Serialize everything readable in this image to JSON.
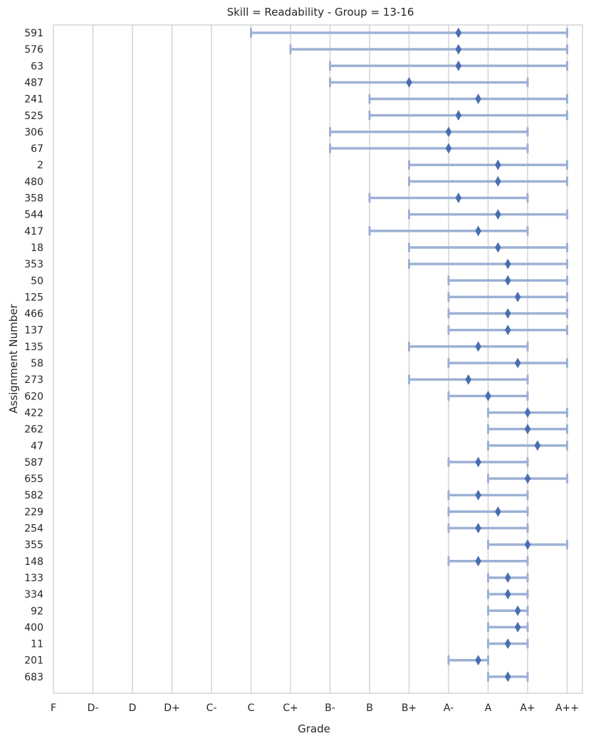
{
  "chart_data": {
    "type": "errorbar",
    "title": "Skill = Readability - Group = 13-16",
    "xlabel": "Grade",
    "ylabel": "Assignment Number",
    "x_categories": [
      "F",
      "D-",
      "D",
      "D+",
      "C-",
      "C",
      "C+",
      "B-",
      "B",
      "B+",
      "A-",
      "A",
      "A+",
      "A++"
    ],
    "grid": "vertical",
    "colors": {
      "bar": "#9db0d5",
      "marker": "#4a6fb0"
    },
    "rows": [
      {
        "label": "591",
        "low": 5,
        "high": 13,
        "mean": 10.25
      },
      {
        "label": "576",
        "low": 6,
        "high": 13,
        "mean": 10.25
      },
      {
        "label": "63",
        "low": 7,
        "high": 13,
        "mean": 10.25
      },
      {
        "label": "487",
        "low": 7,
        "high": 12,
        "mean": 9.0
      },
      {
        "label": "241",
        "low": 8,
        "high": 13,
        "mean": 10.75
      },
      {
        "label": "525",
        "low": 8,
        "high": 13,
        "mean": 10.25
      },
      {
        "label": "306",
        "low": 7,
        "high": 12,
        "mean": 10.0
      },
      {
        "label": "67",
        "low": 7,
        "high": 12,
        "mean": 10.0
      },
      {
        "label": "2",
        "low": 9,
        "high": 13,
        "mean": 11.25
      },
      {
        "label": "480",
        "low": 9,
        "high": 13,
        "mean": 11.25
      },
      {
        "label": "358",
        "low": 8,
        "high": 12,
        "mean": 10.25
      },
      {
        "label": "544",
        "low": 9,
        "high": 13,
        "mean": 11.25
      },
      {
        "label": "417",
        "low": 8,
        "high": 12,
        "mean": 10.75
      },
      {
        "label": "18",
        "low": 9,
        "high": 13,
        "mean": 11.25
      },
      {
        "label": "353",
        "low": 9,
        "high": 13,
        "mean": 11.5
      },
      {
        "label": "50",
        "low": 10,
        "high": 13,
        "mean": 11.5
      },
      {
        "label": "125",
        "low": 10,
        "high": 13,
        "mean": 11.75
      },
      {
        "label": "466",
        "low": 10,
        "high": 13,
        "mean": 11.5
      },
      {
        "label": "137",
        "low": 10,
        "high": 13,
        "mean": 11.5
      },
      {
        "label": "135",
        "low": 9,
        "high": 12,
        "mean": 10.75
      },
      {
        "label": "58",
        "low": 10,
        "high": 13,
        "mean": 11.75
      },
      {
        "label": "273",
        "low": 9,
        "high": 12,
        "mean": 10.5
      },
      {
        "label": "620",
        "low": 10,
        "high": 12,
        "mean": 11.0
      },
      {
        "label": "422",
        "low": 11,
        "high": 13,
        "mean": 12.0
      },
      {
        "label": "262",
        "low": 11,
        "high": 13,
        "mean": 12.0
      },
      {
        "label": "47",
        "low": 11,
        "high": 13,
        "mean": 12.25
      },
      {
        "label": "587",
        "low": 10,
        "high": 12,
        "mean": 10.75
      },
      {
        "label": "655",
        "low": 11,
        "high": 13,
        "mean": 12.0
      },
      {
        "label": "582",
        "low": 10,
        "high": 12,
        "mean": 10.75
      },
      {
        "label": "229",
        "low": 10,
        "high": 12,
        "mean": 11.25
      },
      {
        "label": "254",
        "low": 10,
        "high": 12,
        "mean": 10.75
      },
      {
        "label": "355",
        "low": 11,
        "high": 13,
        "mean": 12.0
      },
      {
        "label": "148",
        "low": 10,
        "high": 12,
        "mean": 10.75
      },
      {
        "label": "133",
        "low": 11,
        "high": 12,
        "mean": 11.5
      },
      {
        "label": "334",
        "low": 11,
        "high": 12,
        "mean": 11.5
      },
      {
        "label": "92",
        "low": 11,
        "high": 12,
        "mean": 11.75
      },
      {
        "label": "400",
        "low": 11,
        "high": 12,
        "mean": 11.75
      },
      {
        "label": "11",
        "low": 11,
        "high": 12,
        "mean": 11.5
      },
      {
        "label": "201",
        "low": 10,
        "high": 11,
        "mean": 10.75
      },
      {
        "label": "683",
        "low": 11,
        "high": 12,
        "mean": 11.5
      }
    ]
  }
}
